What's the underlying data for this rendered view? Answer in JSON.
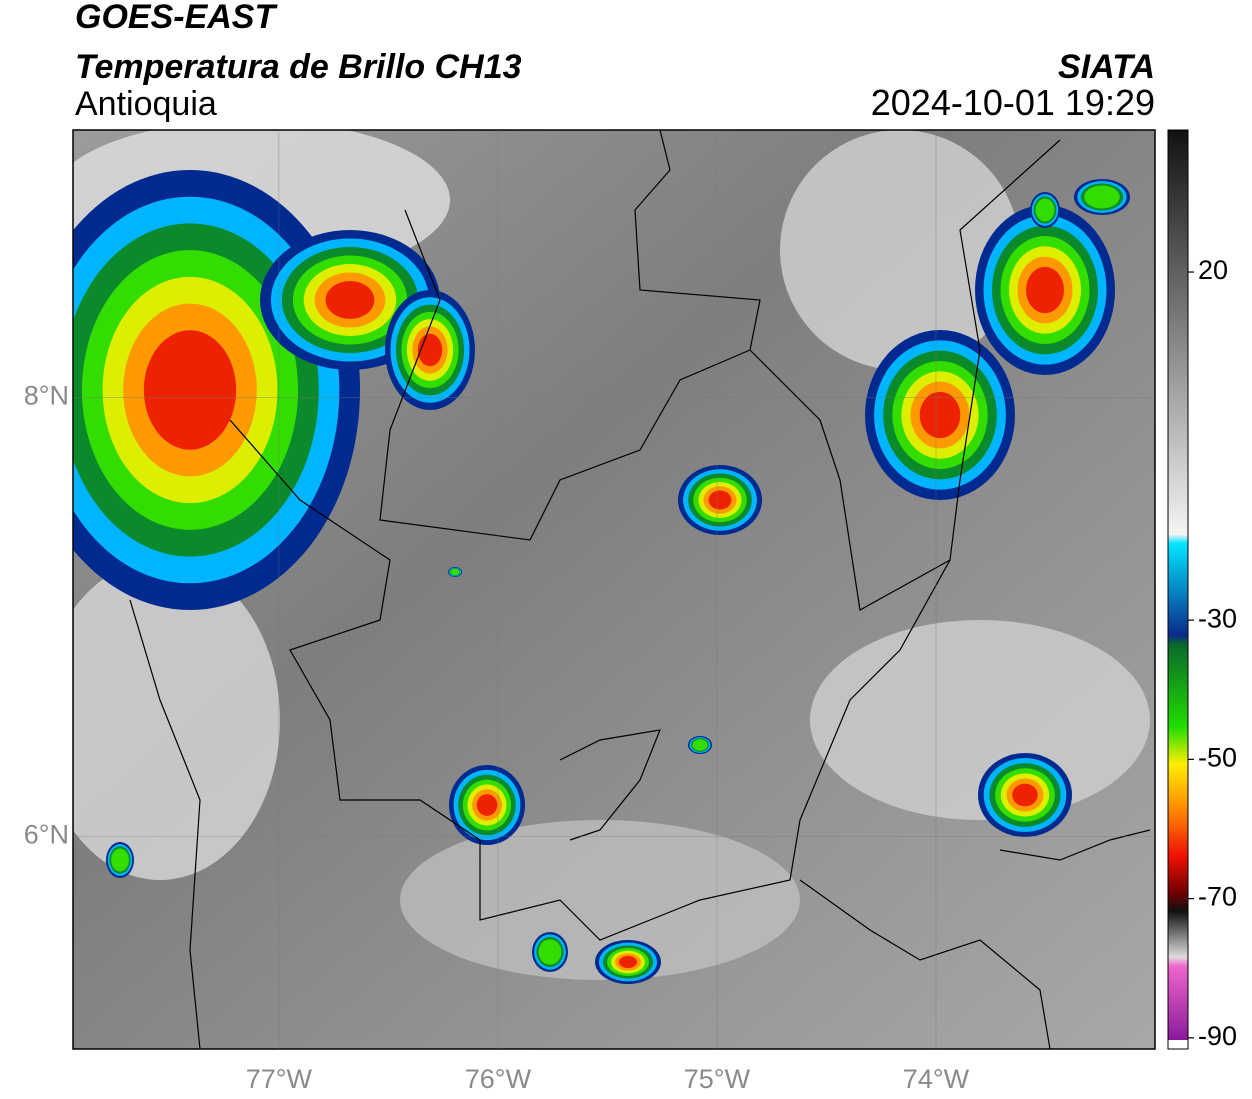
{
  "header": {
    "title": "GOES-EAST",
    "subtitle": "Temperatura de Brillo CH13",
    "region": "Antioquia",
    "source": "SIATA",
    "timestamp": "2024-10-01 19:29"
  },
  "map": {
    "xlim": [
      -77.94,
      -73.0
    ],
    "ylim": [
      5.03,
      9.22
    ],
    "xticks": [
      {
        "value": -77,
        "label": "77°W"
      },
      {
        "value": -76,
        "label": "76°W"
      },
      {
        "value": -75,
        "label": "75°W"
      },
      {
        "value": -74,
        "label": "74°W"
      }
    ],
    "yticks": [
      {
        "value": 8,
        "label": "8°N"
      },
      {
        "value": 6,
        "label": "6°N"
      }
    ]
  },
  "colorbar": {
    "lim": [
      -91.6,
      40.4
    ],
    "ticks": [
      20,
      -30,
      -50,
      -70,
      -90
    ]
  }
}
